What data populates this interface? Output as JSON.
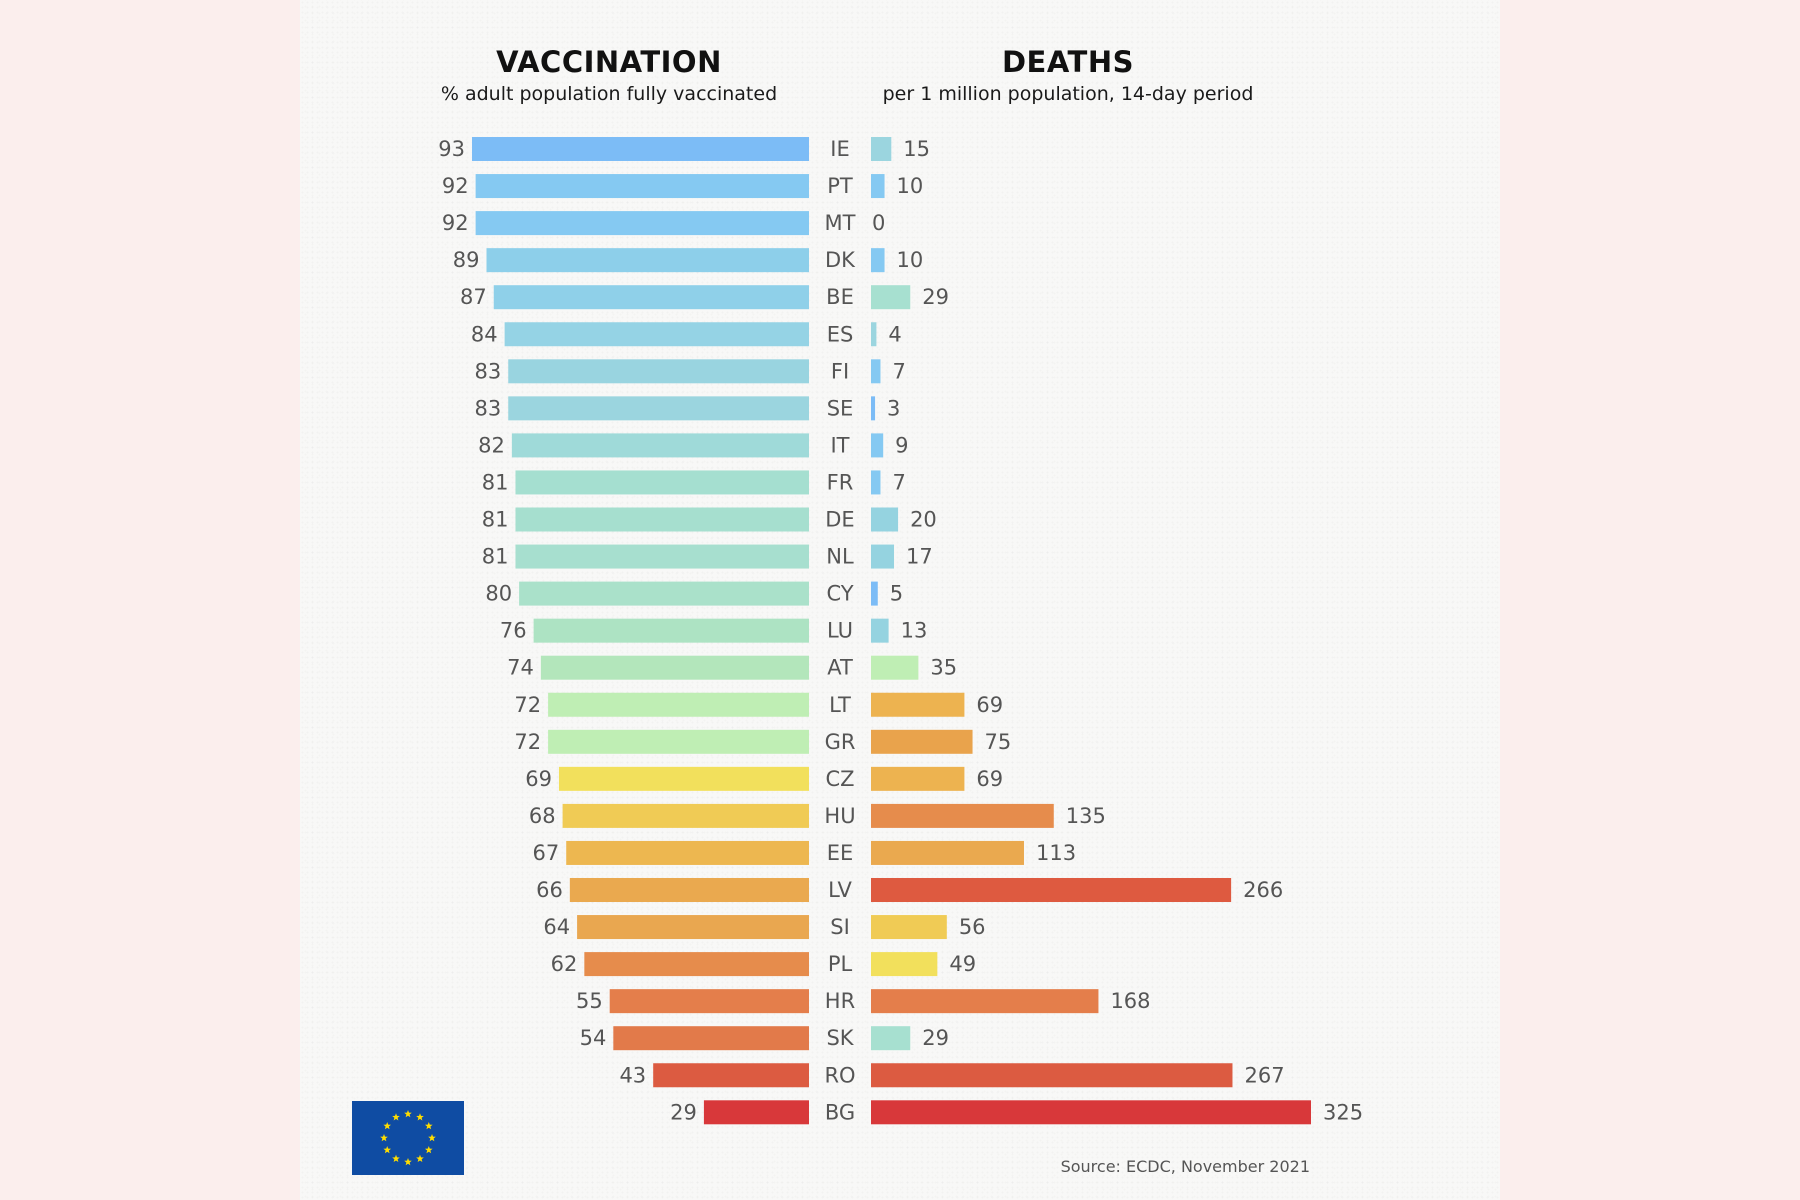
{
  "left_panel": {
    "title": "VACCINATION",
    "subtitle": "% adult population fully vaccinated"
  },
  "right_panel": {
    "title": "DEATHS",
    "subtitle": "per 1 million population, 14-day period"
  },
  "source": "Source: ECDC, November 2021",
  "logo": "eu-flag",
  "chart_data": {
    "type": "bar",
    "orientation": "horizontal-butterfly",
    "categories": [
      "IE",
      "PT",
      "MT",
      "DK",
      "BE",
      "ES",
      "FI",
      "SE",
      "IT",
      "FR",
      "DE",
      "NL",
      "CY",
      "LU",
      "AT",
      "LT",
      "GR",
      "CZ",
      "HU",
      "EE",
      "LV",
      "SI",
      "PL",
      "HR",
      "SK",
      "RO",
      "BG"
    ],
    "series": [
      {
        "name": "VACCINATION",
        "unit": "% adult population fully vaccinated",
        "values": [
          93,
          92,
          92,
          89,
          87,
          84,
          83,
          83,
          82,
          81,
          81,
          81,
          80,
          76,
          74,
          72,
          72,
          69,
          68,
          67,
          66,
          64,
          62,
          55,
          54,
          43,
          29
        ],
        "colors": [
          "#7cbcf6",
          "#85c9f2",
          "#85c9f2",
          "#8dcfea",
          "#8fd0e9",
          "#95d3e5",
          "#99d4e0",
          "#9bd5df",
          "#9fdad9",
          "#a5dfd0",
          "#a6dfcf",
          "#a7dfcf",
          "#aae1ca",
          "#ade3c3",
          "#b3e6bb",
          "#bfeeb4",
          "#bfeeb4",
          "#f2e05c",
          "#f0cb55",
          "#edb750",
          "#eaa94f",
          "#e9a750",
          "#e68c4c",
          "#e47e4b",
          "#e27a4a",
          "#dc5b41",
          "#d8383a"
        ]
      },
      {
        "name": "DEATHS",
        "unit": "per 1 million population, 14-day period",
        "values": [
          15,
          10,
          0,
          10,
          29,
          4,
          7,
          3,
          9,
          7,
          20,
          17,
          5,
          13,
          35,
          69,
          75,
          69,
          135,
          113,
          266,
          56,
          49,
          168,
          29,
          267,
          325
        ],
        "colors": [
          "#9bd5df",
          "#85c9f2",
          "#85c9f2",
          "#85c9f2",
          "#a7e0d0",
          "#9bd5df",
          "#85c9f2",
          "#7cbcf6",
          "#85c9f2",
          "#85c9f2",
          "#95d3e0",
          "#95d3e0",
          "#7cbcf6",
          "#95d3e0",
          "#bfeeb4",
          "#edb350",
          "#e9a34c",
          "#edb350",
          "#e68c4c",
          "#eaa94f",
          "#de5a40",
          "#f0cb55",
          "#f2e05c",
          "#e47e4b",
          "#a7e0d0",
          "#dc5b41",
          "#d8383a"
        ]
      }
    ],
    "title": "VACCINATION / DEATHS",
    "xlabel": "",
    "ylabel": "",
    "xlim_left": [
      0,
      100
    ],
    "xlim_right": [
      0,
      325
    ],
    "grid": false,
    "legend": "none"
  }
}
